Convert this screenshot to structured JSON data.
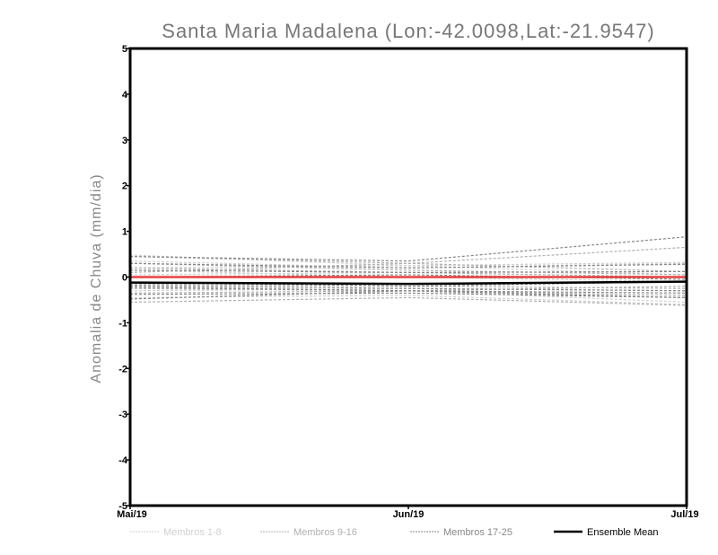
{
  "chart_data": {
    "type": "line",
    "title": "Santa Maria Madalena (Lon:-42.0098,Lat:-21.9547)",
    "xlabel": "",
    "ylabel": "Anomalia de Chuva (mm/dia)",
    "categories": [
      "Mai/19",
      "Jun/19",
      "Jul/19"
    ],
    "ylim": [
      -5,
      5
    ],
    "yticks": [
      "-5",
      "-4",
      "-3",
      "-2",
      "-1",
      "0",
      "1",
      "2",
      "3",
      "4",
      "5"
    ],
    "groups": [
      {
        "name": "Membros 1-8",
        "color": "#d0d0d0",
        "series": [
          [
            0.48,
            0.25,
            0.05
          ],
          [
            0.35,
            0.2,
            0.3
          ],
          [
            0.15,
            0.0,
            -0.1
          ],
          [
            -0.2,
            -0.3,
            -0.55
          ],
          [
            -0.45,
            -0.4,
            -0.6
          ],
          [
            0.05,
            0.1,
            0.0
          ],
          [
            -0.3,
            -0.25,
            -0.3
          ],
          [
            0.2,
            0.25,
            0.32
          ]
        ]
      },
      {
        "name": "Membros 9-16",
        "color": "#b0b0b0",
        "series": [
          [
            0.45,
            0.3,
            0.12
          ],
          [
            0.3,
            0.15,
            0.05
          ],
          [
            -0.15,
            -0.2,
            -0.25
          ],
          [
            -0.25,
            -0.3,
            -0.4
          ],
          [
            -0.55,
            -0.45,
            -0.62
          ],
          [
            0.1,
            0.3,
            0.65
          ],
          [
            -0.35,
            -0.3,
            -0.2
          ],
          [
            0.2,
            0.1,
            0.0
          ]
        ]
      },
      {
        "name": "Membros 17-25",
        "color": "#888888",
        "series": [
          [
            0.45,
            0.35,
            0.88
          ],
          [
            0.3,
            0.2,
            0.28
          ],
          [
            0.15,
            0.1,
            0.12
          ],
          [
            -0.12,
            -0.2,
            -0.1
          ],
          [
            -0.18,
            -0.25,
            -0.3
          ],
          [
            -0.22,
            -0.3,
            -0.45
          ],
          [
            -0.38,
            -0.35,
            -0.45
          ],
          [
            -0.48,
            -0.3,
            -0.35
          ],
          [
            0.0,
            0.05,
            -0.05
          ]
        ]
      }
    ],
    "ensemble_mean": {
      "name": "Ensemble Mean",
      "color": "#000000",
      "values": [
        -0.12,
        -0.15,
        -0.1
      ]
    },
    "observed": {
      "color": "#e84040",
      "values": [
        0.0,
        0.0,
        0.0
      ]
    },
    "legend_position": "bottom"
  }
}
